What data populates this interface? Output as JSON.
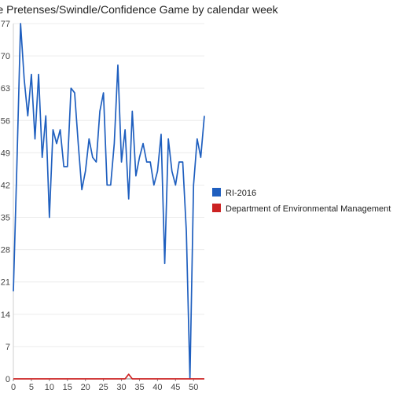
{
  "chart_data": {
    "type": "line",
    "title": "False Pretenses/Swindle/Confidence Game by calendar week",
    "xlabel": "",
    "ylabel": "",
    "xlim": [
      0,
      53
    ],
    "ylim": [
      0,
      77
    ],
    "x_ticks": [
      0,
      5,
      10,
      15,
      20,
      25,
      30,
      35,
      40,
      45,
      50
    ],
    "y_ticks": [
      0,
      7,
      14,
      21,
      28,
      35,
      42,
      49,
      56,
      63,
      70,
      77
    ],
    "legend_position": "right",
    "series": [
      {
        "name": "RI-2016",
        "color": "#1f5fbf",
        "x": [
          0,
          1,
          2,
          3,
          4,
          5,
          6,
          7,
          8,
          9,
          10,
          11,
          12,
          13,
          14,
          15,
          16,
          17,
          18,
          19,
          20,
          21,
          22,
          23,
          24,
          25,
          26,
          27,
          28,
          29,
          30,
          31,
          32,
          33,
          34,
          35,
          36,
          37,
          38,
          39,
          40,
          41,
          42,
          43,
          44,
          45,
          46,
          47,
          48,
          49,
          50,
          51,
          52,
          53
        ],
        "values": [
          19,
          47,
          77,
          65,
          57,
          66,
          52,
          66,
          48,
          57,
          35,
          54,
          51,
          54,
          46,
          46,
          63,
          62,
          51,
          41,
          45,
          52,
          48,
          47,
          58,
          62,
          42,
          42,
          51,
          68,
          47,
          54,
          39,
          58,
          44,
          48,
          51,
          47,
          47,
          42,
          45,
          53,
          25,
          52,
          45,
          42,
          47,
          47,
          32,
          0,
          42,
          52,
          48,
          57
        ]
      },
      {
        "name": "Department of Environmental Management",
        "color": "#cc2222",
        "x": [
          0,
          1,
          2,
          3,
          4,
          5,
          6,
          7,
          8,
          9,
          10,
          11,
          12,
          13,
          14,
          15,
          16,
          17,
          18,
          19,
          20,
          21,
          22,
          23,
          24,
          25,
          26,
          27,
          28,
          29,
          30,
          31,
          32,
          33,
          34,
          35,
          36,
          37,
          38,
          39,
          40,
          41,
          42,
          43,
          44,
          45,
          46,
          47,
          48,
          49,
          50,
          51,
          52,
          53
        ],
        "values": [
          0,
          0,
          0,
          0,
          0,
          0,
          0,
          0,
          0,
          0,
          0,
          0,
          0,
          0,
          0,
          0,
          0,
          0,
          0,
          0,
          0,
          0,
          0,
          0,
          0,
          0,
          0,
          0,
          0,
          0,
          0,
          0,
          1,
          0,
          0,
          0,
          0,
          0,
          0,
          0,
          0,
          0,
          0,
          0,
          0,
          0,
          0,
          0,
          0,
          0,
          0,
          0,
          0,
          0
        ]
      }
    ]
  }
}
